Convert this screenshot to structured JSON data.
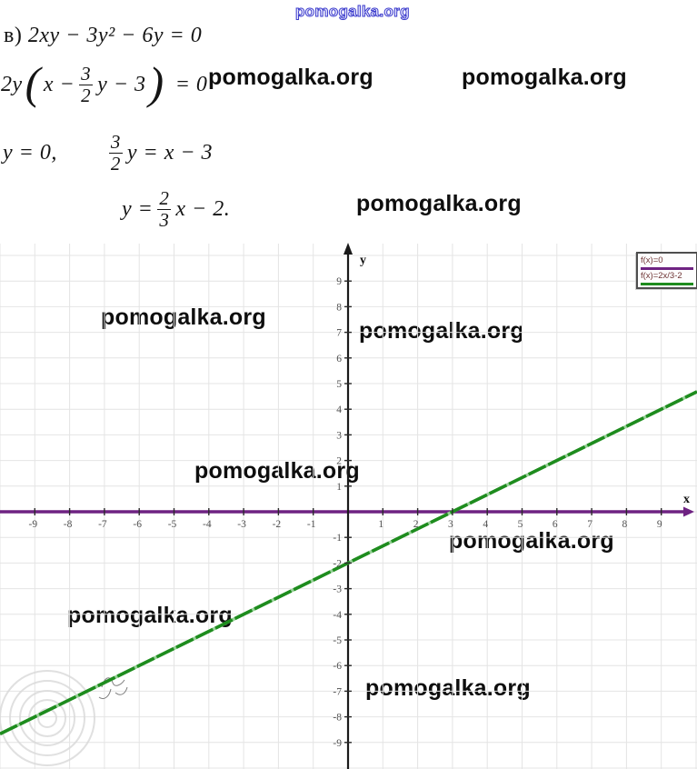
{
  "watermark": {
    "text": "pomogalka.org"
  },
  "equations": {
    "line1": {
      "label": "в)",
      "text": "2xy − 3y² − 6y = 0"
    },
    "line2": {
      "lead": "2y",
      "open": "(",
      "pre": "x −",
      "num": "3",
      "den": "2",
      "mid": "y − 3",
      "close": ")",
      "tail": "= 0"
    },
    "line3": {
      "first": "y = 0,",
      "num": "3",
      "den": "2",
      "rest": "y = x − 3"
    },
    "line4": {
      "lead": "y =",
      "num": "2",
      "den": "3",
      "rest": "x − 2."
    }
  },
  "chart_data": {
    "type": "line",
    "title": "",
    "x_axis_label": "x",
    "y_axis_label": "y",
    "xlim": [
      -10,
      10
    ],
    "ylim": [
      -10,
      10
    ],
    "grid": true,
    "grid_color": "#e4e4e4",
    "axis_color": "#1a1a1a",
    "tick_label_color": "#4f4f4f",
    "x_ticks": [
      -9,
      -8,
      -7,
      -6,
      -5,
      -4,
      -3,
      -2,
      -1,
      1,
      2,
      3,
      4,
      5,
      6,
      7,
      8,
      9
    ],
    "y_ticks": [
      -9,
      -8,
      -7,
      -6,
      -5,
      -4,
      -3,
      -2,
      -1,
      1,
      2,
      3,
      4,
      5,
      6,
      7,
      8,
      9
    ],
    "legend_position": "top-right",
    "series": [
      {
        "name": "f(x)=0",
        "color": "#6e2282",
        "slope": 0,
        "intercept": 0,
        "points": [
          [
            -10,
            0
          ],
          [
            10,
            0
          ]
        ]
      },
      {
        "name": "f(x)=2x/3-2",
        "color": "#1e8c1e",
        "slope": 0.6667,
        "intercept": -2,
        "points": [
          [
            -10,
            -8.67
          ],
          [
            0,
            -2
          ],
          [
            3,
            0
          ],
          [
            10,
            4.67
          ]
        ]
      }
    ]
  }
}
